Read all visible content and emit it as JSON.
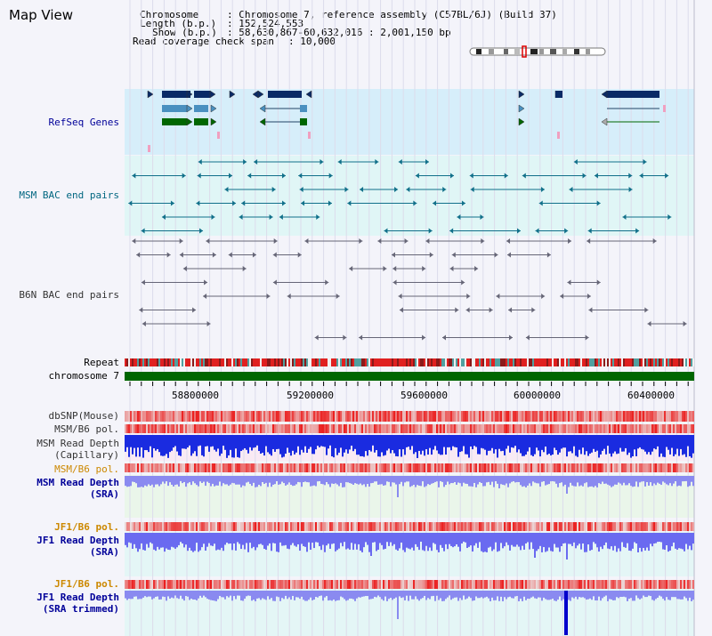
{
  "view_title": "Map View",
  "info": {
    "chromosome_label": "Chromosome",
    "chromosome_value": "Chromosome 7, reference assembly (C57BL/6J) (Build 37)",
    "length_label": "Length (b.p.)",
    "length_value": "152,524,553",
    "show_label": "Show (b.p.)",
    "show_value": "58,630,867-60,632,016 : 2,001,150 bp",
    "coverage_label": "Read coverage check span",
    "coverage_value": "10,000"
  },
  "tracks": {
    "refseq": "RefSeq Genes",
    "msm_bac": "MSM BAC end pairs",
    "b6n_bac": "B6N BAC end pairs",
    "repeat": "Repeat",
    "chromosome": "chromosome 7",
    "dbsnp": "dbSNP(Mouse)",
    "msm_b6_pol_1": "MSM/B6 pol.",
    "msm_read_depth_cap_1": "MSM Read Depth",
    "msm_read_depth_cap_2": "(Capillary)",
    "msm_b6_pol_2": "MSM/B6 pol.",
    "msm_read_depth_sra_1": "MSM Read Depth",
    "msm_read_depth_sra_2": "(SRA)",
    "jf1_b6_pol_1": "JF1/B6 pol.",
    "jf1_read_depth_sra_1": "JF1 Read Depth",
    "jf1_read_depth_sra_2": "(SRA)",
    "jf1_b6_pol_2": "JF1/B6 pol.",
    "jf1_read_depth_trim_1": "JF1 Read Depth",
    "jf1_read_depth_trim_2": "(SRA trimmed)"
  },
  "axis_ticks": [
    "58800000",
    "59200000",
    "59600000",
    "60000000",
    "60400000"
  ],
  "colors": {
    "refseq_label": "#000099",
    "msm_bac_label": "#006680",
    "b6n_bac_label": "#333333",
    "pol_orange": "#cc8800",
    "depth_blue": "#000099",
    "refseq_bg": "#d6eefa",
    "msm_bg": "#e0f6f6",
    "gene_dark": "#0a2a66",
    "gene_mid": "#4a90c0",
    "gene_green": "#006600",
    "chrom_green": "#006600"
  }
}
